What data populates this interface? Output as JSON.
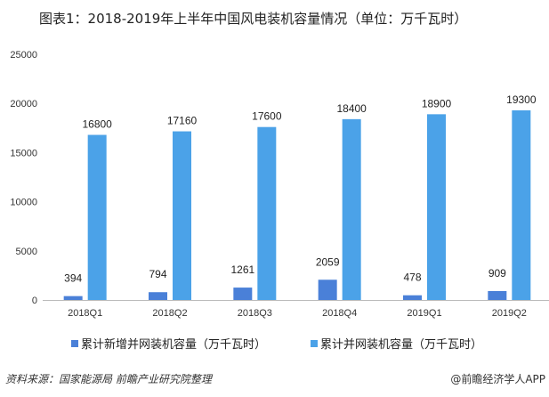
{
  "title": "图表1：2018-2019年上半年中国风电装机容量情况（单位：万千瓦时）",
  "source": "资料来源：国家能源局 前瞻产业研究院整理",
  "brand": "@前瞻经济学人APP",
  "chart_data": {
    "type": "bar",
    "title": "图表1：2018-2019年上半年中国风电装机容量情况（单位：万千瓦时）",
    "categories": [
      "2018Q1",
      "2018Q2",
      "2018Q3",
      "2018Q4",
      "2019Q1",
      "2019Q2"
    ],
    "series": [
      {
        "name": "累计新增并网装机容量（万千瓦时）",
        "color": "#4a80d8",
        "values": [
          394,
          794,
          1261,
          2059,
          478,
          909
        ]
      },
      {
        "name": "累计并网装机容量（万千瓦时）",
        "color": "#4ba2e8",
        "values": [
          16800,
          17160,
          17600,
          18400,
          18900,
          19300
        ]
      }
    ],
    "ylim": [
      0,
      25000
    ],
    "yticks": [
      0,
      5000,
      10000,
      15000,
      20000,
      25000
    ],
    "grid": false,
    "legend": "bottom"
  }
}
